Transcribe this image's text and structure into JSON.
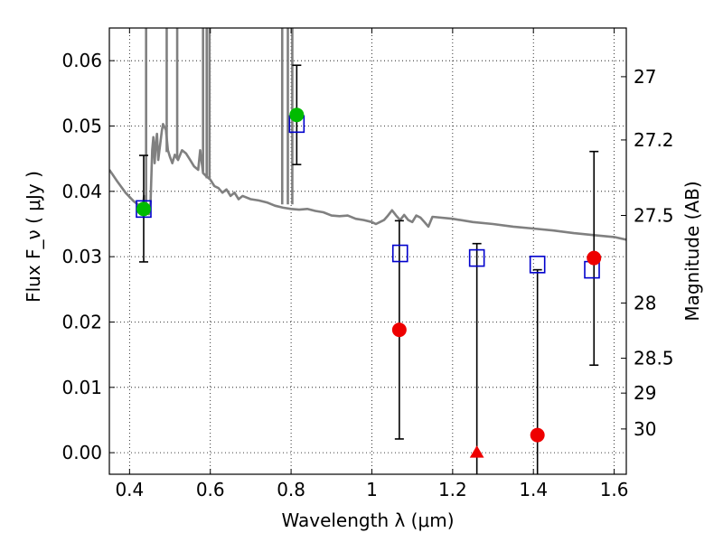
{
  "chart_data": {
    "type": "scatter",
    "xlabel": "Wavelength  λ (μm)",
    "ylabel": "Flux  F_ν  ( μJy )",
    "y2label": "Magnitude (AB)",
    "xlim": [
      0.35,
      1.63
    ],
    "ylim": [
      -0.0033,
      0.065
    ],
    "grid": true,
    "x_ticks": [
      0.4,
      0.6,
      0.8,
      1.0,
      1.2,
      1.4,
      1.6
    ],
    "x_tick_labels": [
      "0.4",
      "0.6",
      "0.8",
      "1",
      "1.2",
      "1.4",
      "1.6"
    ],
    "y_ticks": [
      0.0,
      0.01,
      0.02,
      0.03,
      0.04,
      0.05,
      0.06
    ],
    "y_tick_labels": [
      "0.00",
      "0.01",
      "0.02",
      "0.03",
      "0.04",
      "0.05",
      "0.06"
    ],
    "mag_ticks": [
      27,
      27.2,
      27.5,
      28,
      28.5,
      29,
      30
    ],
    "mag_tick_labels": [
      "27",
      "27.2",
      "27.5",
      "28",
      "28.5",
      "29",
      "30"
    ],
    "colors": {
      "model_sed": "#808080",
      "model_bands": "#0000cc",
      "detection_green": "#00bb00",
      "detection_red": "#ee0000",
      "errorbar": "#000000"
    },
    "model_sed": [
      [
        0.35,
        0.0433
      ],
      [
        0.37,
        0.0415
      ],
      [
        0.39,
        0.0398
      ],
      [
        0.41,
        0.0385
      ],
      [
        0.425,
        0.0378
      ],
      [
        0.432,
        0.037
      ],
      [
        0.436,
        0.0393
      ],
      [
        0.438,
        0.0372
      ],
      [
        0.44,
        0.0368
      ],
      [
        0.448,
        0.0365
      ],
      [
        0.452,
        0.0383
      ],
      [
        0.456,
        0.0463
      ],
      [
        0.459,
        0.0483
      ],
      [
        0.462,
        0.0443
      ],
      [
        0.465,
        0.0473
      ],
      [
        0.468,
        0.0488
      ],
      [
        0.471,
        0.0448
      ],
      [
        0.475,
        0.0468
      ],
      [
        0.48,
        0.0493
      ],
      [
        0.483,
        0.0503
      ],
      [
        0.487,
        0.0498
      ],
      [
        0.49,
        0.0494
      ],
      [
        0.495,
        0.0463
      ],
      [
        0.5,
        0.0453
      ],
      [
        0.506,
        0.0443
      ],
      [
        0.512,
        0.0456
      ],
      [
        0.52,
        0.0448
      ],
      [
        0.53,
        0.0463
      ],
      [
        0.54,
        0.0458
      ],
      [
        0.55,
        0.0448
      ],
      [
        0.56,
        0.0438
      ],
      [
        0.57,
        0.0433
      ],
      [
        0.575,
        0.0463
      ],
      [
        0.582,
        0.0428
      ],
      [
        0.59,
        0.0423
      ],
      [
        0.6,
        0.0418
      ],
      [
        0.61,
        0.0408
      ],
      [
        0.62,
        0.0405
      ],
      [
        0.63,
        0.0398
      ],
      [
        0.64,
        0.0403
      ],
      [
        0.65,
        0.0393
      ],
      [
        0.66,
        0.0398
      ],
      [
        0.67,
        0.0388
      ],
      [
        0.68,
        0.0393
      ],
      [
        0.7,
        0.0388
      ],
      [
        0.72,
        0.0386
      ],
      [
        0.74,
        0.0383
      ],
      [
        0.76,
        0.0378
      ],
      [
        0.78,
        0.0375
      ],
      [
        0.8,
        0.0373
      ],
      [
        0.82,
        0.0372
      ],
      [
        0.84,
        0.0373
      ],
      [
        0.86,
        0.037
      ],
      [
        0.88,
        0.0368
      ],
      [
        0.9,
        0.0363
      ],
      [
        0.92,
        0.0362
      ],
      [
        0.94,
        0.0363
      ],
      [
        0.96,
        0.0358
      ],
      [
        0.98,
        0.0356
      ],
      [
        1.0,
        0.0353
      ],
      [
        1.01,
        0.035
      ],
      [
        1.02,
        0.0353
      ],
      [
        1.03,
        0.0356
      ],
      [
        1.04,
        0.0363
      ],
      [
        1.05,
        0.0371
      ],
      [
        1.06,
        0.0363
      ],
      [
        1.07,
        0.0356
      ],
      [
        1.08,
        0.0364
      ],
      [
        1.09,
        0.0356
      ],
      [
        1.1,
        0.0353
      ],
      [
        1.11,
        0.0363
      ],
      [
        1.12,
        0.036
      ],
      [
        1.13,
        0.0353
      ],
      [
        1.14,
        0.0346
      ],
      [
        1.15,
        0.0361
      ],
      [
        1.2,
        0.0358
      ],
      [
        1.25,
        0.0353
      ],
      [
        1.3,
        0.035
      ],
      [
        1.35,
        0.0346
      ],
      [
        1.4,
        0.0343
      ],
      [
        1.45,
        0.034
      ],
      [
        1.5,
        0.0336
      ],
      [
        1.55,
        0.0333
      ],
      [
        1.6,
        0.033
      ],
      [
        1.63,
        0.0326
      ]
    ],
    "emission_spikes": [
      {
        "x": 0.441,
        "ymin": 0.037
      },
      {
        "x": 0.492,
        "ymin": 0.046
      },
      {
        "x": 0.518,
        "ymin": 0.045
      },
      {
        "x": 0.582,
        "ymin": 0.043
      },
      {
        "x": 0.591,
        "ymin": 0.042
      },
      {
        "x": 0.598,
        "ymin": 0.042
      },
      {
        "x": 0.778,
        "ymin": 0.038
      },
      {
        "x": 0.792,
        "ymin": 0.038
      },
      {
        "x": 0.803,
        "ymin": 0.038
      }
    ],
    "model_bands": [
      {
        "x": 0.435,
        "y": 0.0373
      },
      {
        "x": 0.814,
        "y": 0.0503
      },
      {
        "x": 1.07,
        "y": 0.0305
      },
      {
        "x": 1.26,
        "y": 0.0298
      },
      {
        "x": 1.41,
        "y": 0.0288
      },
      {
        "x": 1.545,
        "y": 0.028
      }
    ],
    "observations": [
      {
        "x": 0.435,
        "y": 0.0373,
        "yerr_low": 0.0292,
        "yerr_high": 0.0455,
        "color": "green",
        "marker": "circle"
      },
      {
        "x": 0.814,
        "y": 0.0517,
        "yerr_low": 0.0441,
        "yerr_high": 0.0593,
        "color": "green",
        "marker": "circle"
      },
      {
        "x": 1.068,
        "y": 0.0188,
        "yerr_low": 0.0021,
        "yerr_high": 0.0355,
        "color": "red",
        "marker": "circle"
      },
      {
        "x": 1.26,
        "y": 0.0,
        "yerr_low": -0.0033,
        "yerr_high": 0.032,
        "color": "red",
        "marker": "triangle"
      },
      {
        "x": 1.41,
        "y": 0.0027,
        "yerr_low": -0.0033,
        "yerr_high": 0.028,
        "color": "red",
        "marker": "circle"
      },
      {
        "x": 1.55,
        "y": 0.0298,
        "yerr_low": 0.0134,
        "yerr_high": 0.0461,
        "color": "red",
        "marker": "circle"
      }
    ]
  }
}
